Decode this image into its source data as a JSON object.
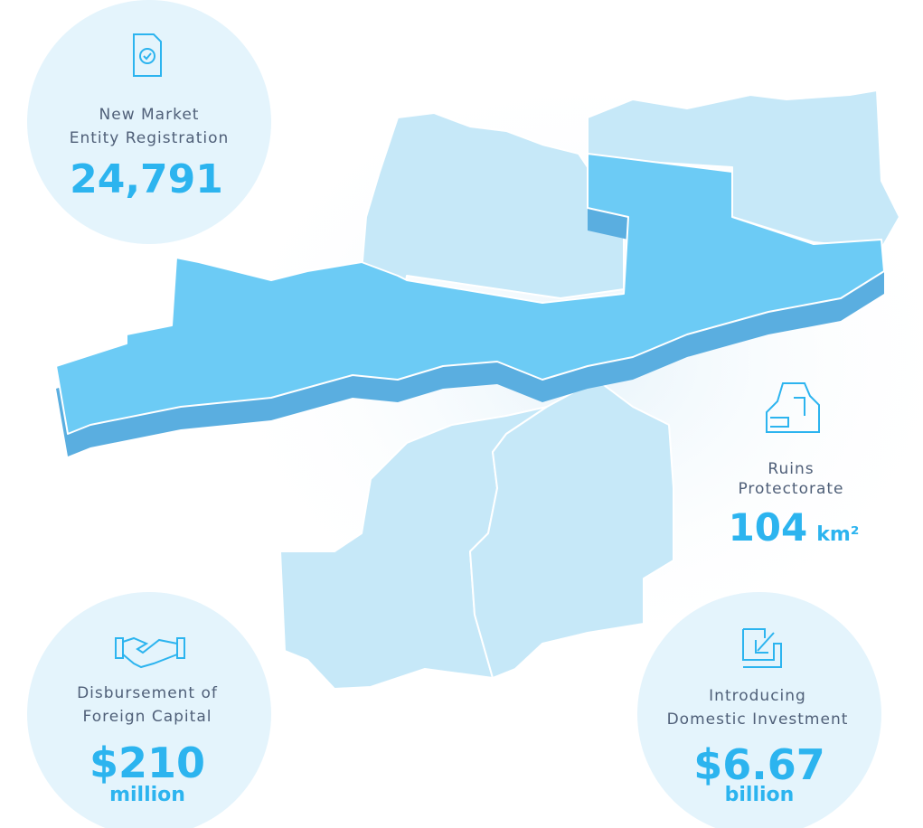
{
  "stats": [
    {
      "label": [
        "New Market",
        "Entity Registration"
      ],
      "value": "24,791"
    },
    {
      "label": [
        "Ruins",
        "Protectorate"
      ],
      "value": "104",
      "unit": "km²"
    },
    {
      "label": [
        "Disbursement of",
        "Foreign Capital"
      ],
      "value": "$210",
      "unit": "million"
    },
    {
      "label": [
        "Introducing",
        "Domestic Investment"
      ],
      "value": "$6.67",
      "unit": "billion"
    }
  ]
}
